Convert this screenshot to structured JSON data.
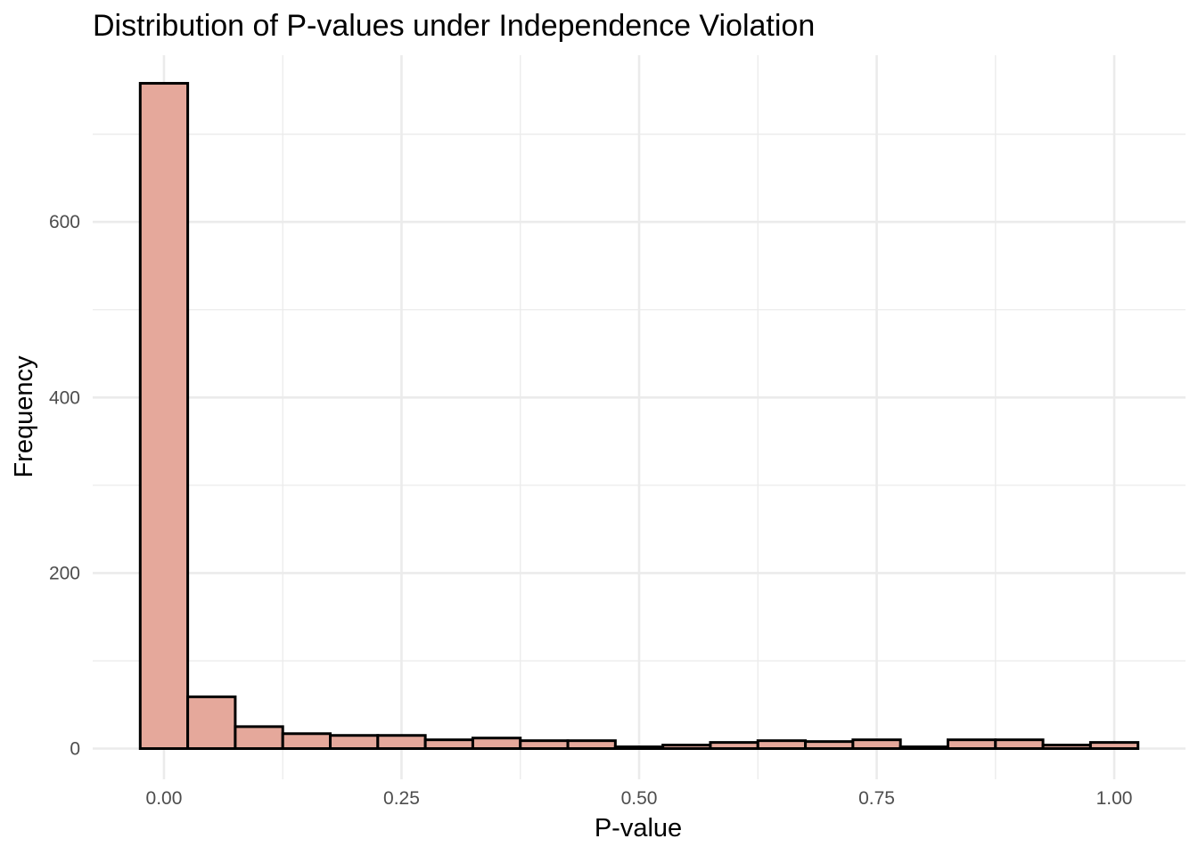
{
  "chart_data": {
    "type": "bar",
    "title": "Distribution of P-values under Independence Violation",
    "xlabel": "P-value",
    "ylabel": "Frequency",
    "xlim": [
      -0.075,
      1.075
    ],
    "ylim": [
      -35,
      790
    ],
    "x_ticks": [
      0,
      0.25,
      0.5,
      0.75,
      1
    ],
    "x_tick_labels": [
      "0.00",
      "0.25",
      "0.50",
      "0.75",
      "1.00"
    ],
    "y_ticks": [
      0,
      200,
      400,
      600
    ],
    "y_tick_labels": [
      "0",
      "200",
      "400",
      "600"
    ],
    "y_minor_ticks": [
      100,
      300,
      500,
      700
    ],
    "x_minor_ticks": [
      0.125,
      0.375,
      0.625,
      0.875
    ],
    "grid": true,
    "bin_width": 0.05,
    "bin_centers": [
      0,
      0.05,
      0.1,
      0.15,
      0.2,
      0.25,
      0.3,
      0.35,
      0.4,
      0.45,
      0.5,
      0.55,
      0.6,
      0.65,
      0.7,
      0.75,
      0.8,
      0.85,
      0.9,
      0.95,
      1.0
    ],
    "values": [
      758,
      59,
      25,
      17,
      15,
      15,
      10,
      12,
      9,
      9,
      2,
      4,
      7,
      9,
      8,
      10,
      2,
      10,
      10,
      4,
      7
    ],
    "bar_fill": "#e5a89b",
    "bar_outline": "#000000"
  }
}
